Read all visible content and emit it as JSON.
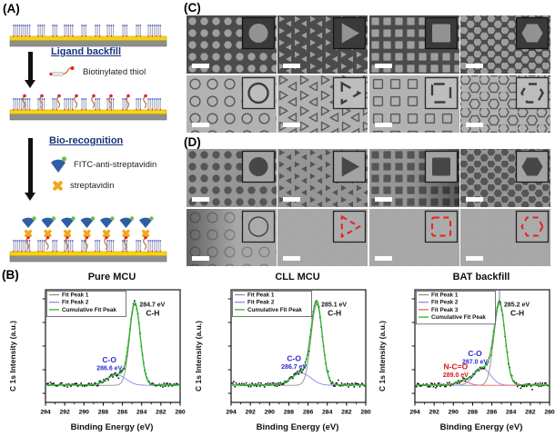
{
  "panels": {
    "a": {
      "label": "(A)"
    },
    "b": {
      "label": "(B)"
    },
    "c": {
      "label": "(C)"
    },
    "d": {
      "label": "(D)"
    }
  },
  "schematic": {
    "step1": {
      "title": "Ligand backfill",
      "legend": [
        {
          "icon": "biotinylated-thiol-icon",
          "label": "Biotinylated thiol"
        }
      ]
    },
    "step2": {
      "title": "Bio-recognition",
      "legend": [
        {
          "icon": "fitc-anti-streptavidin-icon",
          "label": "FITC-anti-streptavidin"
        },
        {
          "icon": "streptavidin-icon",
          "label": "streptavidin"
        }
      ]
    },
    "colors": {
      "step_title": "#17337d",
      "gold": "#f5d316",
      "substrate": "#8e8e8e",
      "molecule": "#a9a9c0",
      "molecule_cap": "#4053c2",
      "thiol_dot": "#e8211d",
      "thiol_chain": "#b07a50",
      "fitc_body": "#2e5fa3",
      "fitc_dot": "#6cbf45",
      "streptavidin": "#f2a71b",
      "arrow": "#111111"
    }
  },
  "sem": {
    "c": {
      "scalebar_color": "#ffffff",
      "rows": [
        {
          "name": "sem-patterns-filled",
          "height": 64,
          "bg": "#4b4b4b",
          "fg": "#9e9e9e",
          "mode": "filled",
          "inset": {
            "bg": "#3a3a3a",
            "border": "#141414",
            "fg": "#929292",
            "mode": "filled"
          },
          "tiles": [
            {
              "shape": "circle"
            },
            {
              "shape": "triangle"
            },
            {
              "shape": "square"
            },
            {
              "shape": "hexagon"
            }
          ]
        },
        {
          "name": "sem-patterns-outline",
          "height": 63,
          "bg": "#b2b2b2",
          "fg": "#5a5a5a",
          "mode": "outline",
          "inset": {
            "bg": "#bdbdbd",
            "border": "#2b2b2b",
            "fg": "#3c3c3c",
            "mode": "outline"
          },
          "tiles": [
            {
              "shape": "circle",
              "inset_dash": ""
            },
            {
              "shape": "triangle",
              "inset_dash": "11 8"
            },
            {
              "shape": "square",
              "inset_dash": "12 9"
            },
            {
              "shape": "hexagon",
              "inset_dash": "9 7"
            }
          ]
        }
      ]
    },
    "d": {
      "scalebar_color": "#ffffff",
      "rows": [
        {
          "name": "fluorescence-patterns-filled",
          "height": 64,
          "bg": "#969696",
          "fg": "#555555",
          "mode": "filled",
          "inset": {
            "bg": "#a3a3a3",
            "border": "#1a1a1a",
            "fg": "#474747",
            "mode": "filled"
          },
          "tiles": [
            {
              "shape": "circle"
            },
            {
              "shape": "triangle"
            },
            {
              "shape": "square",
              "shade": "right"
            },
            {
              "shape": "hexagon"
            }
          ]
        },
        {
          "name": "fluorescence-patterns-faint",
          "height": 63,
          "bg": "#a8a8a8",
          "fg": "#7e7e7e",
          "mode": "outline",
          "inset": {
            "bg": "#ababab",
            "border": "#222222",
            "fg": "#e8211d",
            "mode": "outline"
          },
          "tiles": [
            {
              "shape": "circle",
              "pattern_opacity": 0.9,
              "shade": "left",
              "inset_color": "#3f3f3f",
              "inset_dash": "",
              "inset_width": 1.4
            },
            {
              "shape": "triangle",
              "pattern_opacity": 0.06,
              "inset_dash": "6 4.5",
              "inset_width": 2
            },
            {
              "shape": "square",
              "pattern_opacity": 0.05,
              "inset_dash": "6 4.5",
              "inset_width": 2
            },
            {
              "shape": "hexagon",
              "pattern_opacity": 0.06,
              "inset_dash": "6 4.5",
              "inset_width": 2
            }
          ]
        }
      ]
    }
  },
  "chart_data": [
    {
      "type": "line",
      "title": "Pure MCU",
      "xlabel": "Binding Energy (eV)",
      "ylabel": "C 1s Intensity (a.u.)",
      "xlim": [
        294,
        280
      ],
      "x_ticks": [
        294,
        292,
        290,
        288,
        286,
        284,
        282,
        280
      ],
      "grid": false,
      "legend_position": "top-left",
      "legend": [
        {
          "label": "Fit Peak 1",
          "color": "#8f8f8f"
        },
        {
          "label": "Fit Peak 2",
          "color": "#8d8de2"
        },
        {
          "label": "Cumulative Fit Peak",
          "color": "#2db52d"
        }
      ],
      "baseline": 0.035,
      "noise_amplitude": 0.05,
      "scatter_color": "#151515",
      "cumulative_color": "#2db52d",
      "peaks": [
        {
          "fit": "Fit Peak 1",
          "assignment": "C-H",
          "annotation": "284.7 eV",
          "center_ev": 284.7,
          "rel_height": 1.0,
          "sigma_ev": 0.55,
          "curve_color": "#8f8f8f",
          "text_color": "#161616",
          "anno_style": "apex"
        },
        {
          "fit": "Fit Peak 2",
          "assignment": "C-O",
          "annotation": "286.6 eV",
          "center_ev": 286.6,
          "rel_height": 0.13,
          "sigma_ev": 0.95,
          "curve_color": "#8d8de2",
          "text_color": "#2b2bd4",
          "anno_style": "above"
        }
      ]
    },
    {
      "type": "line",
      "title": "CLL MCU",
      "xlabel": "Binding Energy (eV)",
      "ylabel": "C 1s Intensity (a.u.)",
      "xlim": [
        294,
        280
      ],
      "x_ticks": [
        294,
        292,
        290,
        288,
        286,
        284,
        282,
        280
      ],
      "grid": false,
      "legend_position": "top-left",
      "legend": [
        {
          "label": "Fit Peak 1",
          "color": "#8f8f8f"
        },
        {
          "label": "Fit Peak 2",
          "color": "#8d8de2"
        },
        {
          "label": "Cumulative Fit Peak",
          "color": "#2db52d"
        }
      ],
      "baseline": 0.035,
      "noise_amplitude": 0.05,
      "scatter_color": "#151515",
      "cumulative_color": "#2db52d",
      "peaks": [
        {
          "fit": "Fit Peak 1",
          "assignment": "C-H",
          "annotation": "285.1 eV",
          "center_ev": 285.1,
          "rel_height": 1.0,
          "sigma_ev": 0.58,
          "curve_color": "#8f8f8f",
          "text_color": "#161616",
          "anno_style": "apex"
        },
        {
          "fit": "Fit Peak 2",
          "assignment": "C-O",
          "annotation": "286.7 eV",
          "center_ev": 286.7,
          "rel_height": 0.15,
          "sigma_ev": 1.0,
          "curve_color": "#8d8de2",
          "text_color": "#2b2bd4",
          "anno_style": "above"
        }
      ]
    },
    {
      "type": "line",
      "title": "BAT backfill",
      "xlabel": "Binding Energy (eV)",
      "ylabel": "C 1s Intensity (a.u.)",
      "xlim": [
        294,
        280
      ],
      "x_ticks": [
        294,
        292,
        290,
        288,
        286,
        284,
        282,
        280
      ],
      "grid": false,
      "legend_position": "top-left",
      "legend": [
        {
          "label": "Fit Peak 1",
          "color": "#8f8f8f"
        },
        {
          "label": "Fit Peak 2",
          "color": "#8d8de2"
        },
        {
          "label": "Fit Peak 3",
          "color": "#e86262"
        },
        {
          "label": "Cumulative Fit Peak",
          "color": "#2db52d"
        }
      ],
      "baseline": 0.035,
      "noise_amplitude": 0.05,
      "scatter_color": "#151515",
      "cumulative_color": "#2db52d",
      "peaks": [
        {
          "fit": "Fit Peak 1",
          "assignment": "C-H",
          "annotation": "285.2 eV",
          "center_ev": 285.2,
          "rel_height": 1.0,
          "sigma_ev": 0.58,
          "curve_color": "#8f8f8f",
          "text_color": "#161616",
          "anno_style": "apex",
          "leader": true
        },
        {
          "fit": "Fit Peak 2",
          "assignment": "C-O",
          "annotation": "287.0 eV",
          "center_ev": 287.0,
          "rel_height": 0.21,
          "sigma_ev": 0.85,
          "curve_color": "#8d8de2",
          "text_color": "#2b2bd4",
          "anno_style": "above"
        },
        {
          "fit": "Fit Peak 3",
          "assignment": "N-C=O",
          "annotation": "289.0 eV",
          "center_ev": 289.0,
          "rel_height": 0.05,
          "sigma_ev": 0.65,
          "curve_color": "#e86262",
          "text_color": "#e01515",
          "anno_style": "above"
        }
      ]
    }
  ]
}
